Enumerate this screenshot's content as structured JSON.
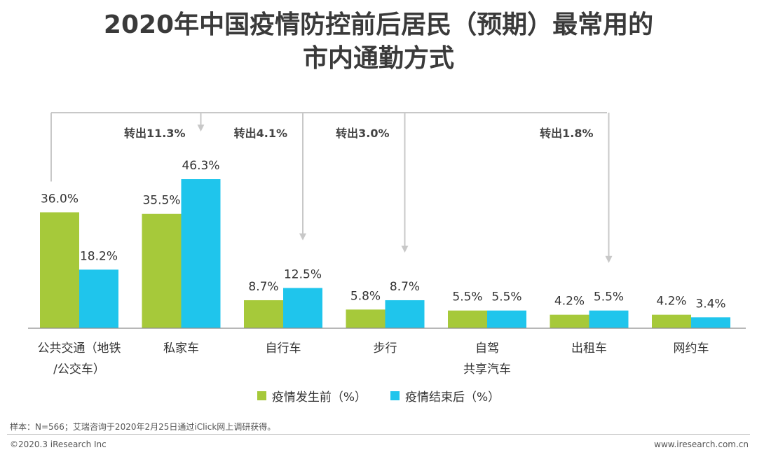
{
  "title_line1": "2020年中国疫情防控前后居民（预期）最常用的",
  "title_line2": "市内通勤方式",
  "colors": {
    "before": "#a6c93a",
    "after": "#1fc5ec",
    "arrow": "#c8c8c8",
    "axis": "#8c8c8c"
  },
  "chart_data": {
    "type": "bar",
    "categories": [
      [
        "公共交通（地铁",
        "/公交车）"
      ],
      [
        "私家车"
      ],
      [
        "自行车"
      ],
      [
        "步行"
      ],
      [
        "自驾",
        "共享汽车"
      ],
      [
        "出租车"
      ],
      [
        "网约车"
      ]
    ],
    "series": [
      {
        "name": "疫情发生前（%）",
        "values": [
          36.0,
          35.5,
          8.7,
          5.8,
          5.5,
          4.2,
          4.2
        ],
        "labels": [
          "36.0%",
          "35.5%",
          "8.7%",
          "5.8%",
          "5.5%",
          "4.2%",
          "4.2%"
        ]
      },
      {
        "name": "疫情结束后（%）",
        "values": [
          18.2,
          46.3,
          12.5,
          8.7,
          5.5,
          5.5,
          3.4
        ],
        "labels": [
          "18.2%",
          "46.3%",
          "12.5%",
          "8.7%",
          "5.5%",
          "5.5%",
          "3.4%"
        ]
      }
    ],
    "ylim": [
      0,
      50
    ],
    "grid": false,
    "legend": "bottom-center",
    "annotations": [
      {
        "text": "转出11.3%",
        "to_category": 1
      },
      {
        "text": "转出4.1%",
        "to_category": 2
      },
      {
        "text": "转出3.0%",
        "to_category": 3
      },
      {
        "text": "转出1.8%",
        "to_category": 5
      }
    ]
  },
  "note": "样本：N=566；艾瑞咨询于2020年2月25日通过iClick网上调研获得。",
  "footer_left": "©2020.3 iResearch Inc",
  "footer_right": "www.iresearch.com.cn"
}
